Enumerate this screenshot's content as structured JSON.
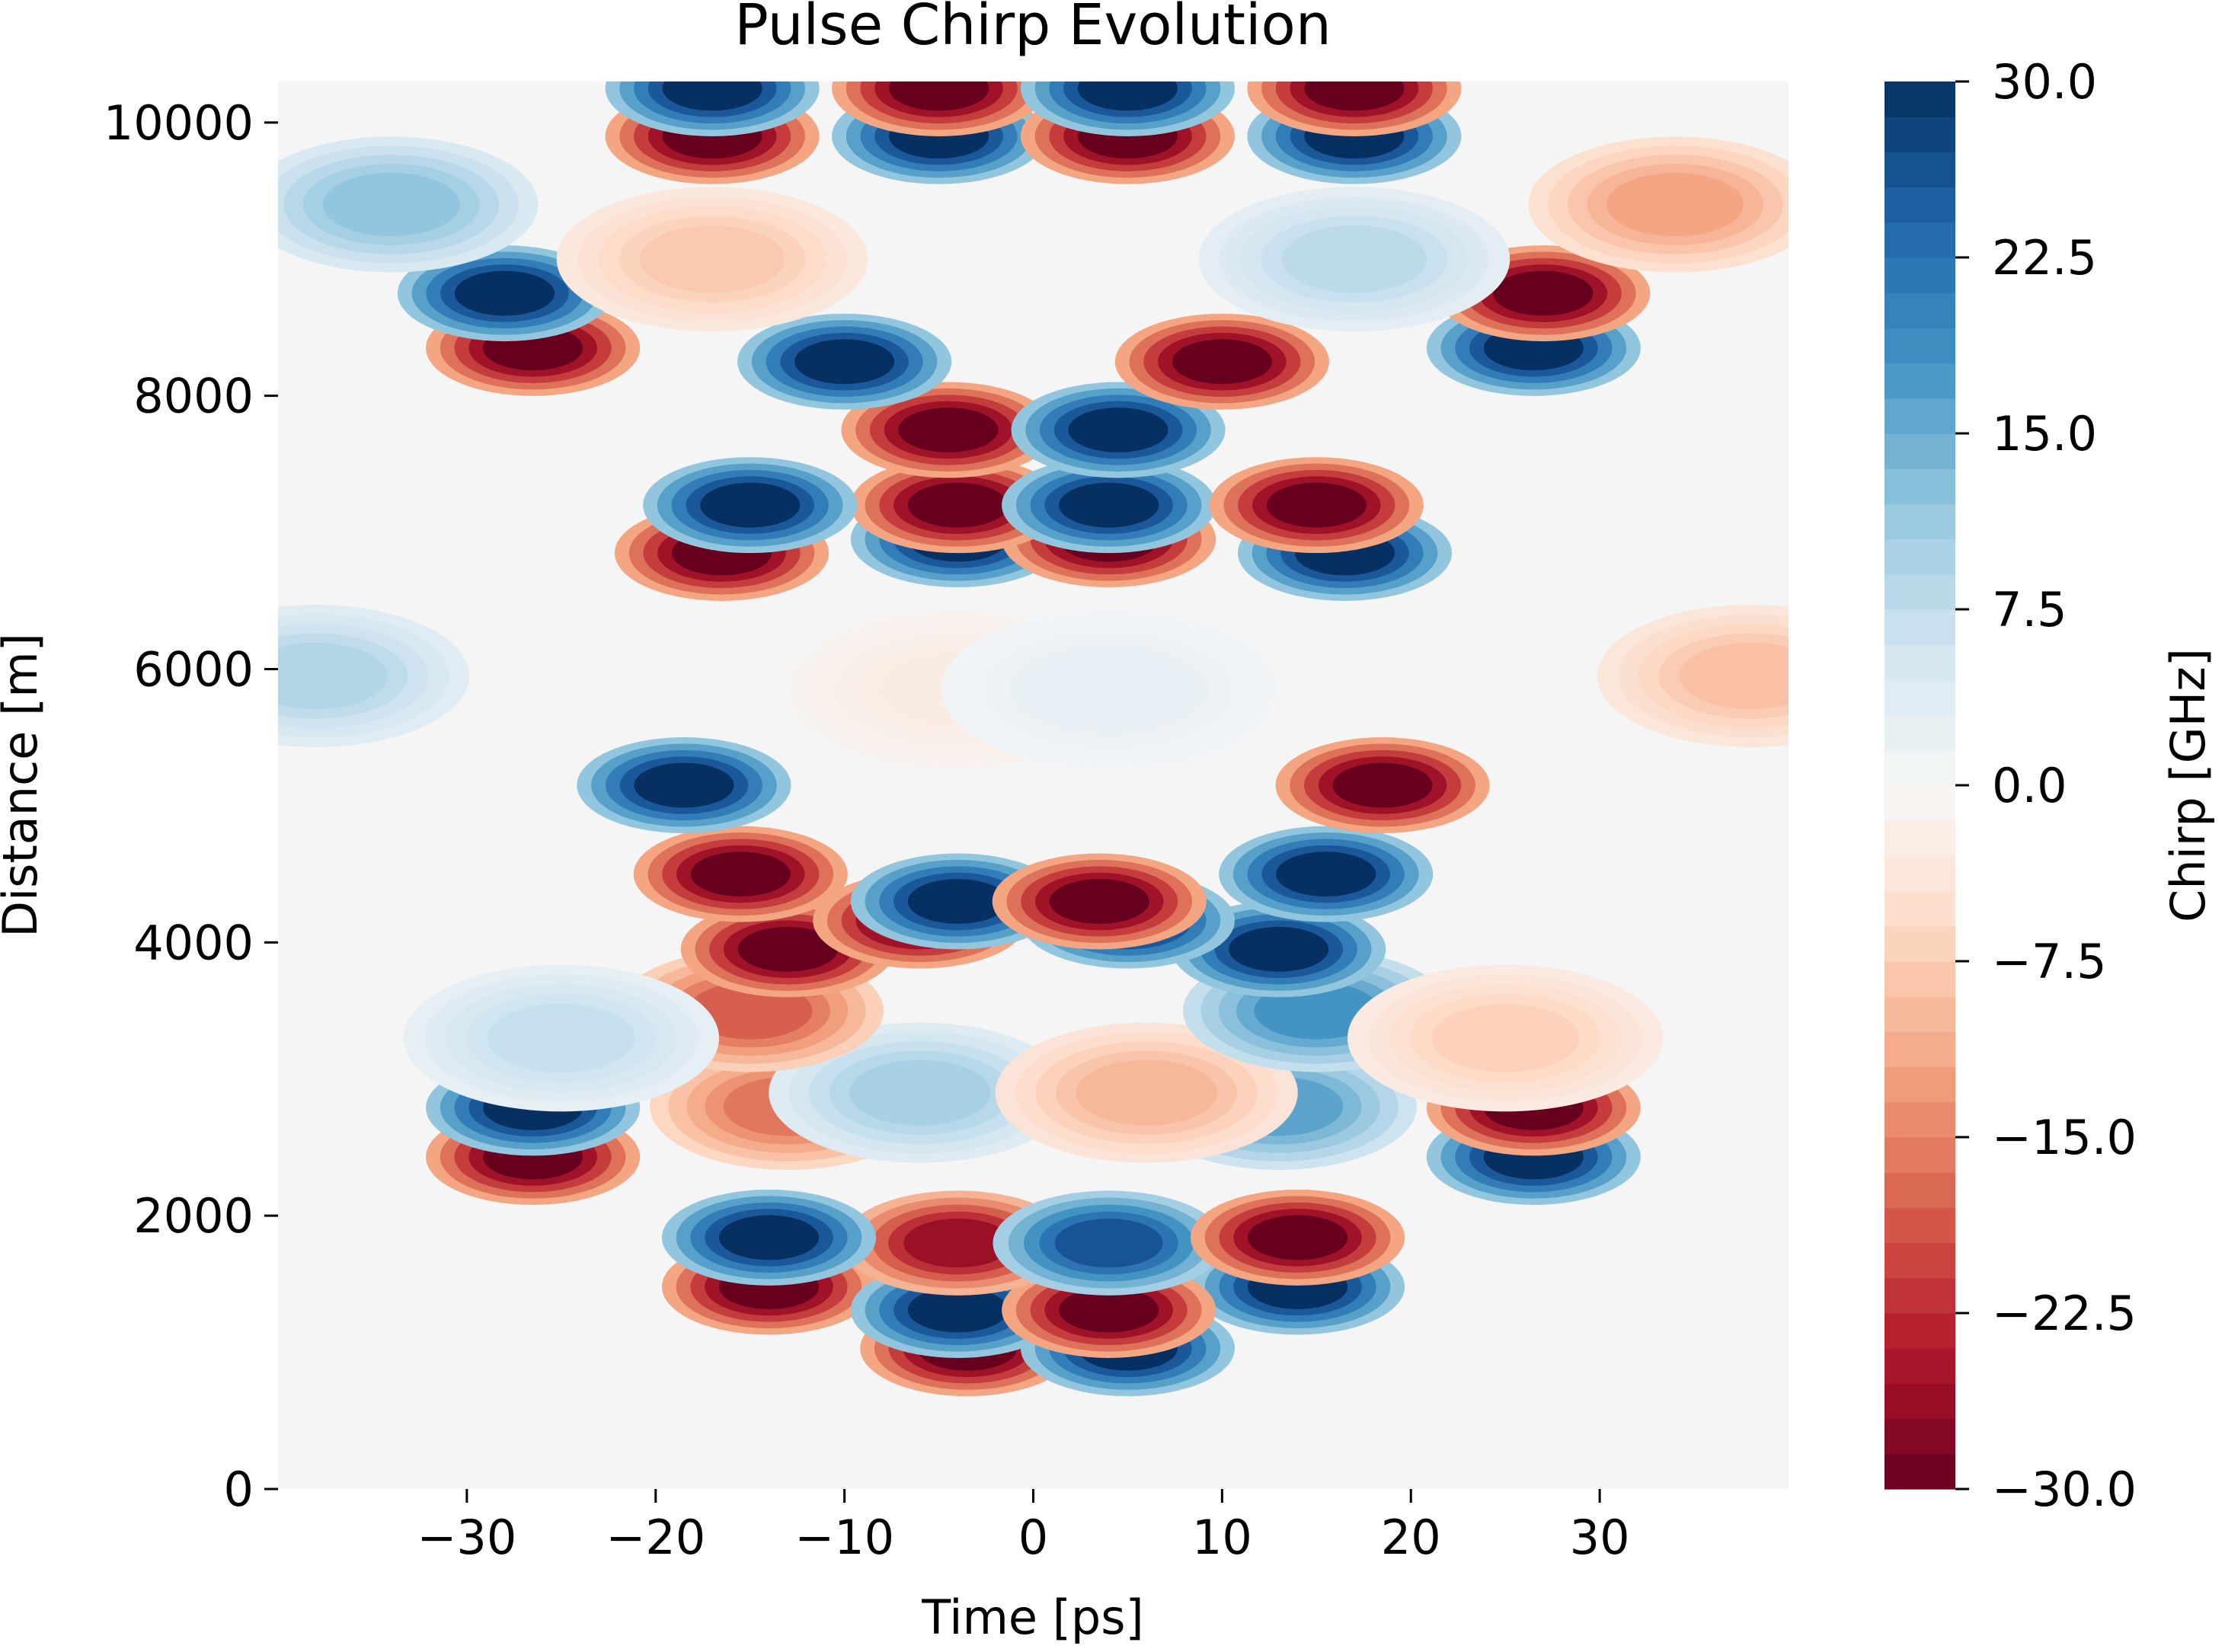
{
  "chart_data": {
    "type": "heatmap",
    "title": "Pulse Chirp Evolution",
    "xlabel": "Time [ps]",
    "ylabel": "Distance [m]",
    "xlim": [
      -40,
      40
    ],
    "ylim": [
      0,
      10300
    ],
    "x_ticks": [
      {
        "value": -30,
        "label": "−30"
      },
      {
        "value": -20,
        "label": "−20"
      },
      {
        "value": -10,
        "label": "−10"
      },
      {
        "value": 0,
        "label": "0"
      },
      {
        "value": 10,
        "label": "10"
      },
      {
        "value": 20,
        "label": "20"
      },
      {
        "value": 30,
        "label": "30"
      }
    ],
    "y_ticks": [
      {
        "value": 0,
        "label": "0"
      },
      {
        "value": 2000,
        "label": "2000"
      },
      {
        "value": 4000,
        "label": "4000"
      },
      {
        "value": 6000,
        "label": "6000"
      },
      {
        "value": 8000,
        "label": "8000"
      },
      {
        "value": 10000,
        "label": "10000"
      }
    ],
    "colorbar": {
      "label": "Chirp [GHz]",
      "colormap": "RdBu",
      "range": [
        -30,
        30
      ],
      "levels": 40,
      "ticks": [
        {
          "value": 30,
          "label": "30.0"
        },
        {
          "value": 22.5,
          "label": "22.5"
        },
        {
          "value": 15,
          "label": "15.0"
        },
        {
          "value": 7.5,
          "label": "7.5"
        },
        {
          "value": 0,
          "label": "0.0"
        },
        {
          "value": -7.5,
          "label": "−7.5"
        },
        {
          "value": -15,
          "label": "−15.0"
        },
        {
          "value": -22.5,
          "label": "−22.5"
        },
        {
          "value": -30,
          "label": "−30.0"
        }
      ]
    },
    "features": [
      {
        "t": -3.5,
        "z": 1030,
        "chirp": -30
      },
      {
        "t": 5,
        "z": 1030,
        "chirp": 30
      },
      {
        "t": -14,
        "z": 1480,
        "chirp": -30
      },
      {
        "t": 14,
        "z": 1480,
        "chirp": 30
      },
      {
        "t": -4,
        "z": 1310,
        "chirp": 30
      },
      {
        "t": 4,
        "z": 1310,
        "chirp": -30
      },
      {
        "t": -4,
        "z": 1800,
        "chirp": -26
      },
      {
        "t": 4,
        "z": 1800,
        "chirp": 26
      },
      {
        "t": -14,
        "z": 1840,
        "chirp": 30
      },
      {
        "t": 14,
        "z": 1840,
        "chirp": -30
      },
      {
        "t": -26.5,
        "z": 2430,
        "chirp": -30
      },
      {
        "t": 26.5,
        "z": 2430,
        "chirp": 30
      },
      {
        "t": -26.5,
        "z": 2790,
        "chirp": 30
      },
      {
        "t": 26.5,
        "z": 2790,
        "chirp": -30
      },
      {
        "t": -13,
        "z": 2800,
        "chirp": -16
      },
      {
        "t": 13,
        "z": 2800,
        "chirp": 16
      },
      {
        "t": -6,
        "z": 2900,
        "chirp": 10
      },
      {
        "t": 6,
        "z": 2900,
        "chirp": -10
      },
      {
        "t": -15,
        "z": 3500,
        "chirp": -18
      },
      {
        "t": 15,
        "z": 3500,
        "chirp": 18
      },
      {
        "t": -25,
        "z": 3300,
        "chirp": 7
      },
      {
        "t": 25,
        "z": 3300,
        "chirp": -7
      },
      {
        "t": -13,
        "z": 3950,
        "chirp": -30
      },
      {
        "t": 13,
        "z": 3950,
        "chirp": 30
      },
      {
        "t": -6,
        "z": 4160,
        "chirp": -30
      },
      {
        "t": 5,
        "z": 4160,
        "chirp": 30
      },
      {
        "t": -4,
        "z": 4300,
        "chirp": 30
      },
      {
        "t": 3.5,
        "z": 4300,
        "chirp": -30
      },
      {
        "t": -15.5,
        "z": 4500,
        "chirp": -30
      },
      {
        "t": 15.5,
        "z": 4500,
        "chirp": 30
      },
      {
        "t": -18.5,
        "z": 5150,
        "chirp": 30
      },
      {
        "t": 18.5,
        "z": 5150,
        "chirp": -30
      },
      {
        "t": -4,
        "z": 5850,
        "chirp": -2.5
      },
      {
        "t": 4,
        "z": 5850,
        "chirp": 2.5
      },
      {
        "t": -38,
        "z": 5950,
        "chirp": 9
      },
      {
        "t": 38,
        "z": 5950,
        "chirp": -9
      },
      {
        "t": -16.5,
        "z": 6850,
        "chirp": -30
      },
      {
        "t": 16.5,
        "z": 6850,
        "chirp": 30
      },
      {
        "t": -4,
        "z": 6950,
        "chirp": 30
      },
      {
        "t": 4,
        "z": 6950,
        "chirp": -30
      },
      {
        "t": -4,
        "z": 7200,
        "chirp": -30
      },
      {
        "t": 4,
        "z": 7200,
        "chirp": 30
      },
      {
        "t": -15,
        "z": 7200,
        "chirp": 30
      },
      {
        "t": 15,
        "z": 7200,
        "chirp": -30
      },
      {
        "t": -4.5,
        "z": 7750,
        "chirp": -30
      },
      {
        "t": 4.5,
        "z": 7750,
        "chirp": 30
      },
      {
        "t": -10,
        "z": 8250,
        "chirp": 30
      },
      {
        "t": 10,
        "z": 8250,
        "chirp": -30
      },
      {
        "t": -26.5,
        "z": 8350,
        "chirp": -30
      },
      {
        "t": 26.5,
        "z": 8350,
        "chirp": 30
      },
      {
        "t": -28,
        "z": 8750,
        "chirp": 30
      },
      {
        "t": 27,
        "z": 8750,
        "chirp": -30
      },
      {
        "t": -17,
        "z": 9000,
        "chirp": -8
      },
      {
        "t": 17,
        "z": 9000,
        "chirp": 8
      },
      {
        "t": -34,
        "z": 9400,
        "chirp": 12
      },
      {
        "t": 34,
        "z": 9400,
        "chirp": -12
      },
      {
        "t": -17,
        "z": 9900,
        "chirp": -30
      },
      {
        "t": 17,
        "z": 9900,
        "chirp": 30
      },
      {
        "t": -5,
        "z": 9900,
        "chirp": 30
      },
      {
        "t": 5,
        "z": 9900,
        "chirp": -30
      },
      {
        "t": -17,
        "z": 10250,
        "chirp": 30
      },
      {
        "t": 17,
        "z": 10250,
        "chirp": -30
      },
      {
        "t": -5,
        "z": 10250,
        "chirp": -30
      },
      {
        "t": 5,
        "z": 10250,
        "chirp": 30
      }
    ]
  }
}
